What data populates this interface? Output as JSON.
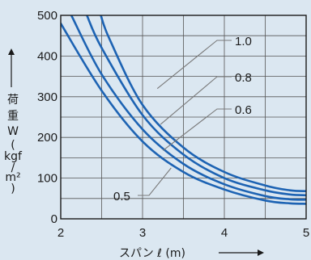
{
  "chart_data": {
    "type": "line",
    "xlabel": "スパン ℓ (m)",
    "ylabel_chars": [
      "荷",
      "重",
      "W",
      "(",
      "kgf",
      "/",
      "m²",
      ")"
    ],
    "xlim": [
      2,
      5
    ],
    "ylim": [
      0,
      500
    ],
    "xticks": [
      "2",
      "3",
      "4",
      "5"
    ],
    "yticks": [
      "0",
      "100",
      "200",
      "300",
      "400",
      "500"
    ],
    "grid": true,
    "colors": {
      "line": "#1d63b3",
      "grid": "#555555",
      "leader": "#7a7a7a",
      "background": "#dbe7f1"
    },
    "series": [
      {
        "name": "1.0",
        "points": [
          [
            2.49,
            500
          ],
          [
            2.6,
            440
          ],
          [
            3.0,
            280
          ],
          [
            3.5,
            175
          ],
          [
            4.0,
            115
          ],
          [
            4.5,
            82
          ],
          [
            4.8,
            70
          ],
          [
            5.0,
            68
          ]
        ]
      },
      {
        "name": "0.8",
        "points": [
          [
            2.32,
            500
          ],
          [
            2.5,
            420
          ],
          [
            3.0,
            255
          ],
          [
            3.5,
            158
          ],
          [
            4.0,
            100
          ],
          [
            4.5,
            70
          ],
          [
            4.8,
            60
          ],
          [
            5.0,
            58
          ]
        ]
      },
      {
        "name": "0.6",
        "points": [
          [
            2.13,
            500
          ],
          [
            2.5,
            355
          ],
          [
            3.0,
            220
          ],
          [
            3.5,
            135
          ],
          [
            4.0,
            85
          ],
          [
            4.5,
            56
          ],
          [
            4.8,
            48
          ],
          [
            5.0,
            47
          ]
        ]
      },
      {
        "name": "0.5",
        "points": [
          [
            2.0,
            480
          ],
          [
            2.5,
            315
          ],
          [
            3.0,
            190
          ],
          [
            3.5,
            115
          ],
          [
            4.0,
            72
          ],
          [
            4.5,
            45
          ],
          [
            4.8,
            38
          ],
          [
            5.0,
            37
          ]
        ]
      }
    ]
  }
}
